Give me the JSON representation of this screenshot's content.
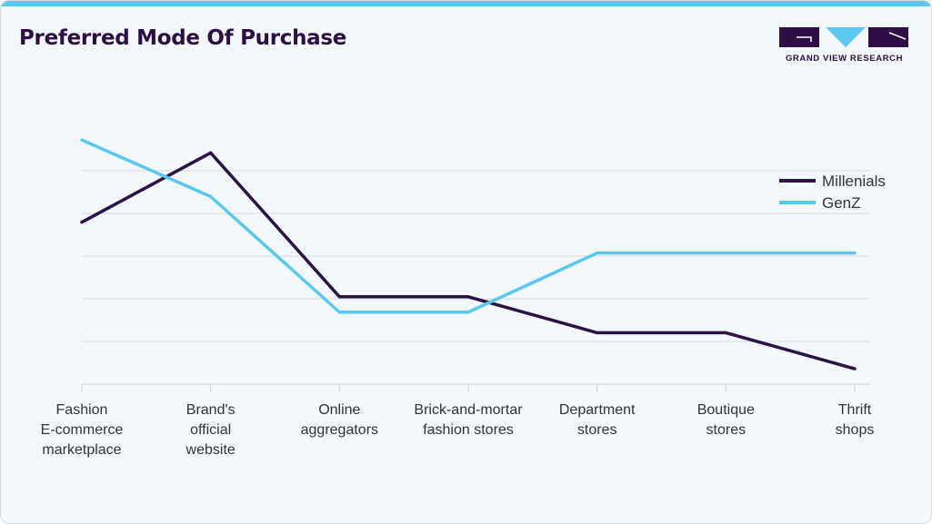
{
  "header": {
    "title": "Preferred Mode Of Purchase",
    "brand": "GRAND VIEW RESEARCH"
  },
  "colors": {
    "millenials": "#2d1245",
    "genz": "#5bc8ef",
    "brand": "#2d0f45",
    "accent": "#5cc8f0",
    "grid": "#d6dde3"
  },
  "chart_data": {
    "type": "line",
    "title": "Preferred Mode Of Purchase",
    "xlabel": "",
    "ylabel": "",
    "ylim": [
      0,
      100
    ],
    "grid": true,
    "legend_position": "right",
    "categories": [
      [
        "Fashion",
        "E-commerce",
        "marketplace"
      ],
      [
        "Brand's",
        "official",
        "website"
      ],
      [
        "Online",
        "aggregators"
      ],
      [
        "Brick-and-mortar",
        "fashion stores"
      ],
      [
        "Department",
        "stores"
      ],
      [
        "Boutique",
        "stores"
      ],
      [
        "Thrift",
        "shops"
      ]
    ],
    "series": [
      {
        "name": "Millenials",
        "values": [
          63,
          90,
          34,
          34,
          20,
          20,
          6
        ]
      },
      {
        "name": "GenZ",
        "values": [
          95,
          73,
          28,
          28,
          51,
          51,
          51
        ]
      }
    ]
  }
}
